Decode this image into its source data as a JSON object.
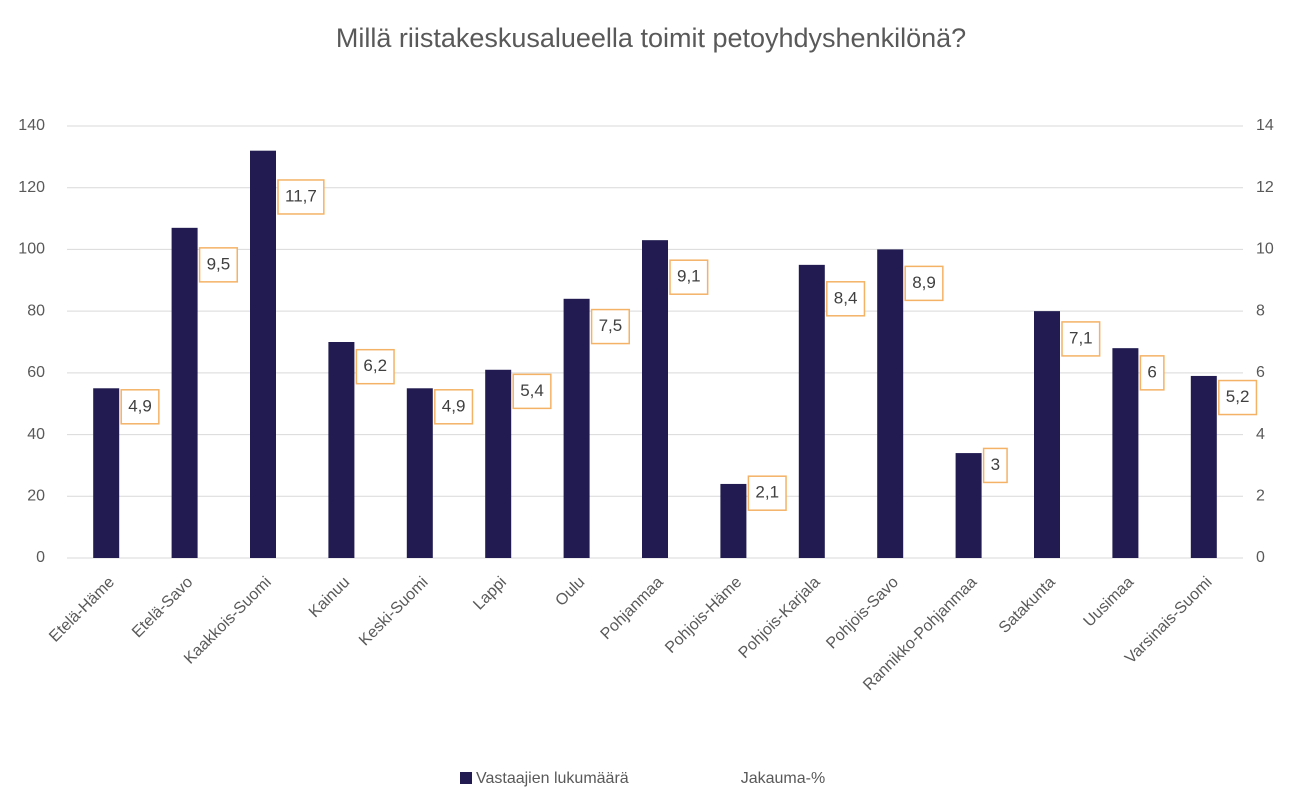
{
  "chart_data": {
    "type": "bar",
    "title": "Millä riistakeskusalueella toimit petoyhdyshenkilönä?",
    "categories": [
      "Etelä-Häme",
      "Etelä-Savo",
      "Kaakkois-Suomi",
      "Kainuu",
      "Keski-Suomi",
      "Lappi",
      "Oulu",
      "Pohjanmaa",
      "Pohjois-Häme",
      "Pohjois-Karjala",
      "Pohjois-Savo",
      "Rannikko-Pohjanmaa",
      "Satakunta",
      "Uusimaa",
      "Varsinais-Suomi"
    ],
    "series": [
      {
        "name": "Vastaajien lukumäärä",
        "color": "#211b51",
        "values": [
          55,
          107,
          132,
          70,
          55,
          61,
          84,
          103,
          24,
          95,
          100,
          34,
          80,
          68,
          59
        ]
      },
      {
        "name": "Jakauma-%",
        "color": "#f4b266",
        "axis": "y2",
        "values": [
          4.9,
          9.5,
          11.7,
          6.2,
          4.9,
          5.4,
          7.5,
          9.1,
          2.1,
          8.4,
          8.9,
          3,
          7.1,
          6,
          5.2
        ],
        "value_labels": [
          "4,9",
          "9,5",
          "11,7",
          "6,2",
          "4,9",
          "5,4",
          "7,5",
          "9,1",
          "2,1",
          "8,4",
          "8,9",
          "3",
          "7,1",
          "6",
          "5,2"
        ]
      }
    ],
    "ylim": [
      0,
      140
    ],
    "yticks": [
      0,
      20,
      40,
      60,
      80,
      100,
      120,
      140
    ],
    "y2lim": [
      0,
      14
    ],
    "y2ticks": [
      0,
      2,
      4,
      6,
      8,
      10,
      12,
      14
    ],
    "grid": true,
    "legend": "bottom"
  }
}
